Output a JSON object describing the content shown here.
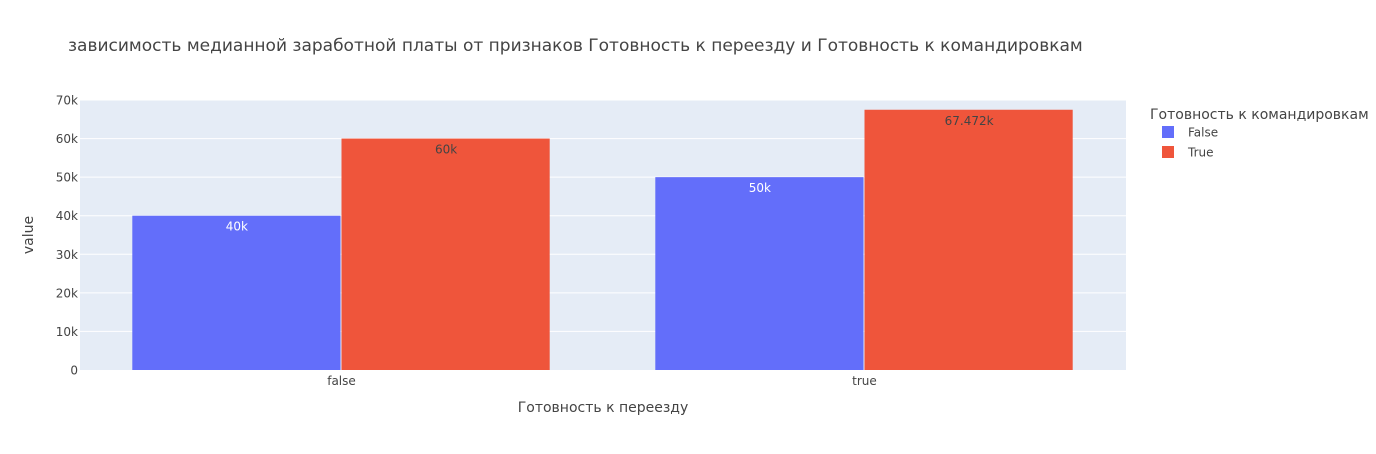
{
  "chart_data": {
    "type": "bar",
    "title": "зависимость медианной заработной платы от признаков Готовность к переезду и Готовность к командировкам",
    "xlabel": "Готовность к переезду",
    "ylabel": "value",
    "categories": [
      "false",
      "true"
    ],
    "series": [
      {
        "name": "False",
        "color": "#636efa",
        "values": [
          40000,
          50000
        ],
        "labels": [
          "40k",
          "50k"
        ],
        "label_color": "#ffffff"
      },
      {
        "name": "True",
        "color": "#ef553b",
        "values": [
          60000,
          67472
        ],
        "labels": [
          "60k",
          "67.472k"
        ],
        "label_color": "#444444"
      }
    ],
    "ylim": [
      0,
      70000
    ],
    "yticks": [
      0,
      10000,
      20000,
      30000,
      40000,
      50000,
      60000,
      70000
    ],
    "ytick_labels": [
      "0",
      "10k",
      "20k",
      "30k",
      "40k",
      "50k",
      "60k",
      "70k"
    ],
    "grid": true,
    "legend": {
      "title": "Готовность к командировкам",
      "placement": "right"
    },
    "colors": {
      "plot_background": "#e5ecf6",
      "grid": "#ffffff",
      "text": "#444444"
    }
  }
}
